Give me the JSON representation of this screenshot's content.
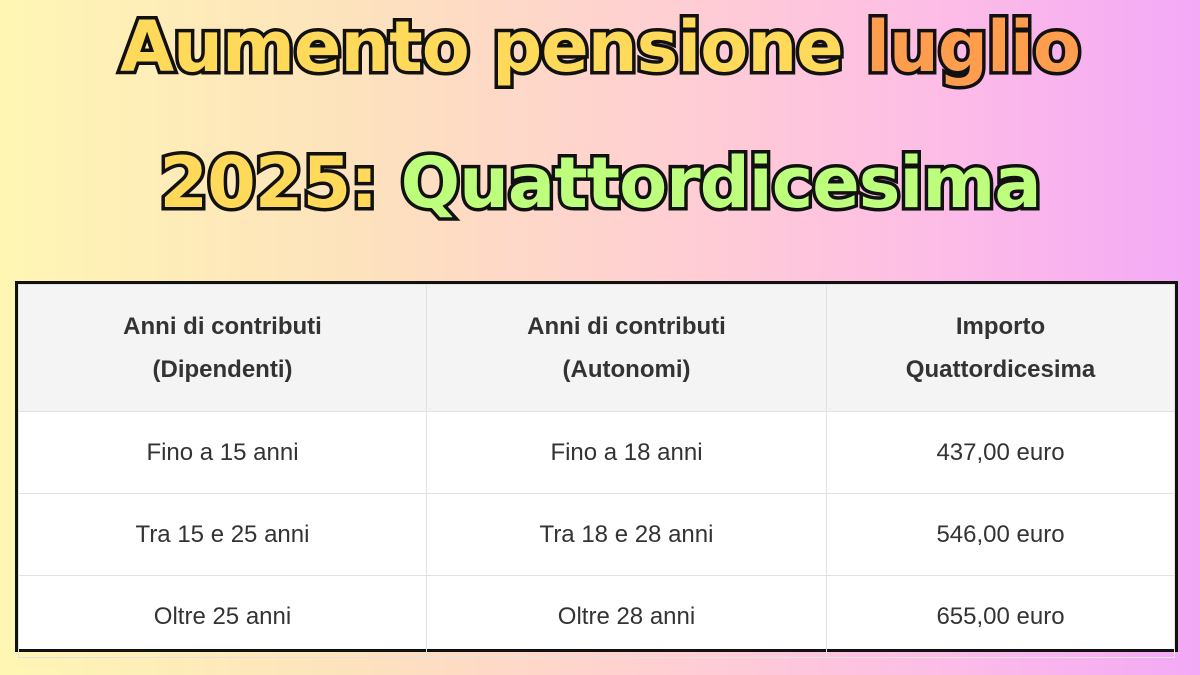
{
  "title": {
    "line1_part1": "Aumento pensione ",
    "line1_part2": "luglio",
    "line2_part1": "2025: ",
    "line2_part2": "Quattordicesima",
    "colors": {
      "yellow": "#ffd95a",
      "orange": "#ff9d4f",
      "green": "#bdff7c",
      "outline": "#111111"
    }
  },
  "table": {
    "headers": [
      [
        "Anni di contributi",
        "(Dipendenti)"
      ],
      [
        "Anni di contributi",
        "(Autonomi)"
      ],
      [
        "Importo",
        "Quattordicesima"
      ]
    ],
    "rows": [
      [
        "Fino a 15 anni",
        "Fino a 18 anni",
        "437,00 euro"
      ],
      [
        "Tra 15 e 25 anni",
        "Tra 18 e 28 anni",
        "546,00 euro"
      ],
      [
        "Oltre 25 anni",
        "Oltre 28 anni",
        "655,00 euro"
      ]
    ]
  }
}
